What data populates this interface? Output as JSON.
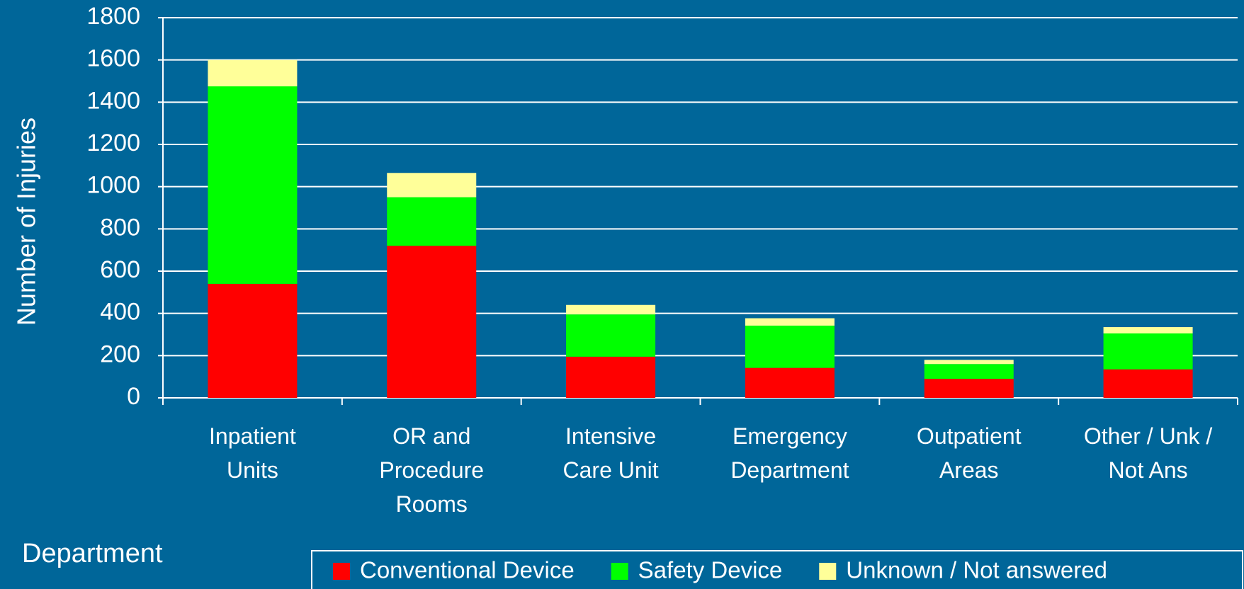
{
  "chart_data": {
    "type": "stacked_bar",
    "categories": [
      "Inpatient\nUnits",
      "OR and\nProcedure\nRooms",
      "Intensive\nCare Unit",
      "Emergency\nDepartment",
      "Outpatient\nAreas",
      "Other / Unk /\nNot Ans"
    ],
    "series": [
      {
        "name": "Conventional Device",
        "color": "#ff0000",
        "values": [
          540,
          720,
          195,
          142,
          90,
          135
        ]
      },
      {
        "name": "Safety Device",
        "color": "#00ff00",
        "values": [
          935,
          230,
          200,
          200,
          70,
          170
        ]
      },
      {
        "name": "Unknown / Not answered",
        "color": "#ffff99",
        "values": [
          125,
          115,
          45,
          35,
          20,
          30
        ]
      }
    ],
    "y_label": "Number of Injuries",
    "x_label": "Department",
    "ylim": [
      0,
      1800
    ],
    "yticks": [
      0,
      200,
      400,
      600,
      800,
      1000,
      1200,
      1400,
      1600,
      1800
    ],
    "grid": true,
    "legend": "bottom"
  }
}
